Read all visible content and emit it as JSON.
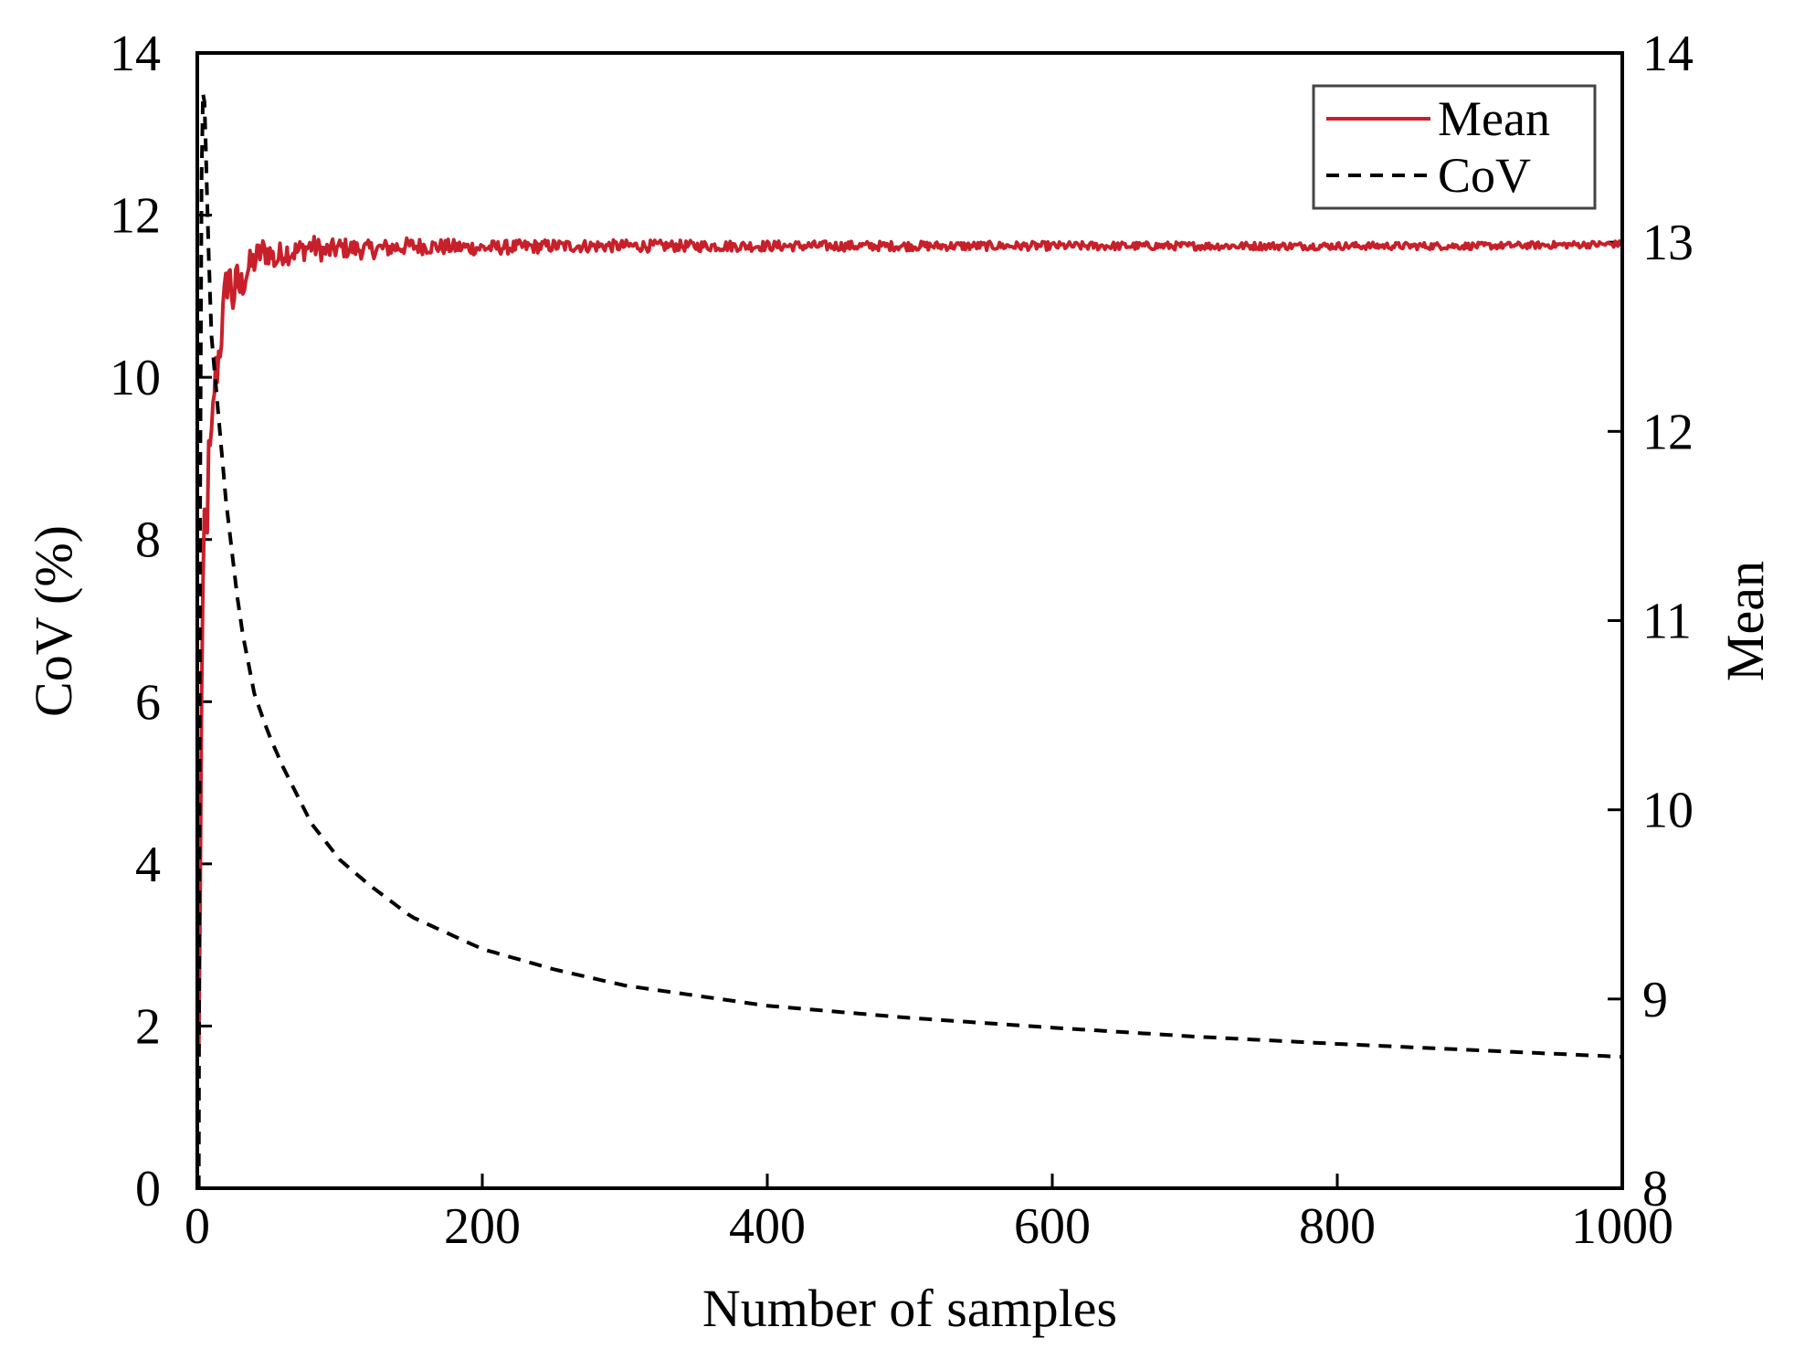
{
  "chart_data": {
    "type": "line",
    "title": "",
    "xlabel": "Number of samples",
    "ylabel_left": "CoV (%)",
    "ylabel_right": "Mean",
    "xlim": [
      0,
      1000
    ],
    "ylim_left": [
      0,
      14
    ],
    "ylim_right": [
      8,
      14
    ],
    "xticks": [
      "0",
      "200",
      "400",
      "600",
      "800",
      "1000"
    ],
    "yticks_left": [
      "0",
      "2",
      "4",
      "6",
      "8",
      "10",
      "12",
      "14"
    ],
    "yticks_right": [
      "8",
      "9",
      "10",
      "11",
      "12",
      "13",
      "14"
    ],
    "grid": false,
    "legend": {
      "position": "top-right",
      "entries": [
        {
          "label": "Mean",
          "style": "solid",
          "color": "#c8202a"
        },
        {
          "label": "CoV",
          "style": "dashed",
          "color": "#000000"
        }
      ]
    },
    "series": [
      {
        "name": "Mean",
        "axis": "right",
        "color": "#c8202a",
        "x": [
          1,
          2,
          3,
          4,
          5,
          6,
          8,
          10,
          12,
          15,
          18,
          20,
          22,
          25,
          28,
          30,
          35,
          40,
          45,
          50,
          55,
          60,
          70,
          80,
          90,
          100,
          120,
          150,
          200,
          250,
          300,
          400,
          500,
          600,
          700,
          800,
          900,
          1000
        ],
        "y": [
          8.7,
          9.5,
          10.6,
          11.2,
          11.5,
          11.4,
          11.8,
          11.9,
          12.25,
          12.4,
          12.6,
          12.75,
          12.85,
          12.7,
          12.8,
          12.75,
          12.85,
          12.9,
          12.95,
          12.95,
          12.9,
          12.95,
          12.95,
          12.98,
          12.95,
          12.97,
          12.96,
          12.98,
          12.97,
          12.98,
          12.98,
          12.98,
          12.98,
          12.98,
          12.98,
          12.98,
          12.98,
          12.99
        ]
      },
      {
        "name": "CoV",
        "axis": "left",
        "color": "#000000",
        "x": [
          1,
          2,
          3,
          4,
          5,
          6,
          8,
          10,
          15,
          20,
          30,
          40,
          50,
          60,
          80,
          100,
          120,
          150,
          200,
          250,
          300,
          400,
          500,
          600,
          700,
          800,
          900,
          1000
        ],
        "y": [
          0,
          8.5,
          12.5,
          13.5,
          13.4,
          12.8,
          11.5,
          10.5,
          9.5,
          8.5,
          7.0,
          6.1,
          5.6,
          5.2,
          4.5,
          4.05,
          3.75,
          3.35,
          2.95,
          2.7,
          2.5,
          2.25,
          2.1,
          1.98,
          1.87,
          1.78,
          1.7,
          1.62
        ]
      }
    ]
  }
}
